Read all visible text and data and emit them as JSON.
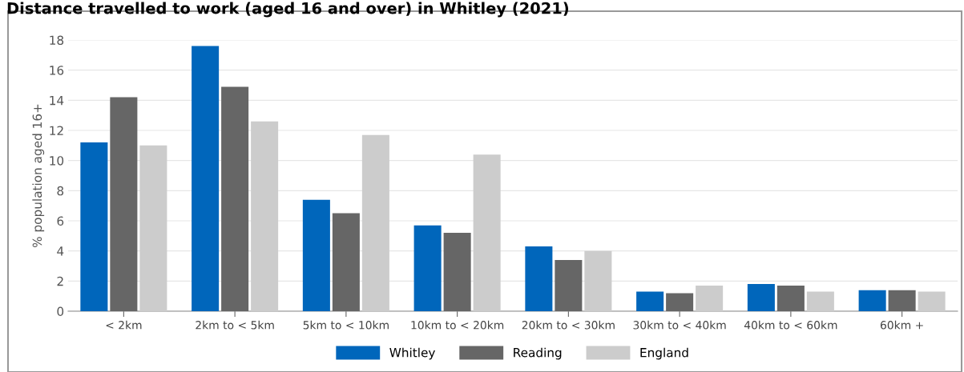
{
  "chart_data": {
    "type": "bar",
    "title": "Distance travelled to work (aged 16 and over) in Whitley (2021)",
    "ylabel": "% population aged 16+",
    "categories": [
      "< 2km",
      "2km to < 5km",
      "5km to < 10km",
      "10km to < 20km",
      "20km to < 30km",
      "30km to < 40km",
      "40km to < 60km",
      "60km +"
    ],
    "series": [
      {
        "name": "Whitley",
        "color": "#0066bb",
        "values": [
          11.2,
          17.6,
          7.4,
          5.7,
          4.3,
          1.3,
          1.8,
          1.4
        ]
      },
      {
        "name": "Reading",
        "color": "#666666",
        "values": [
          14.2,
          14.9,
          6.5,
          5.2,
          3.4,
          1.2,
          1.7,
          1.4
        ]
      },
      {
        "name": "England",
        "color": "#cccccc",
        "values": [
          11.0,
          12.6,
          11.7,
          10.4,
          4.0,
          1.7,
          1.3,
          1.3
        ]
      }
    ],
    "ylim": [
      0,
      18
    ],
    "yticks": [
      0,
      2,
      4,
      6,
      8,
      10,
      12,
      14,
      16,
      18
    ],
    "grid": "y",
    "legend": "bottom"
  }
}
